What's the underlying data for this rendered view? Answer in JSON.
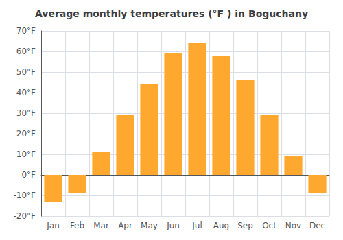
{
  "chart_data": {
    "type": "bar",
    "title": "Average monthly temperatures (°F ) in Boguchany",
    "categories": [
      "Jan",
      "Feb",
      "Mar",
      "Apr",
      "May",
      "Jun",
      "Jul",
      "Aug",
      "Sep",
      "Oct",
      "Nov",
      "Dec"
    ],
    "values": [
      -13,
      -9,
      11,
      29,
      44,
      59,
      64,
      58,
      46,
      29,
      9,
      -9
    ],
    "color": "#FFA830",
    "ylim": [
      -20,
      70
    ],
    "yticks": [
      {
        "value": -20,
        "label": "-20°F"
      },
      {
        "value": -10,
        "label": "-10°F"
      },
      {
        "value": 0,
        "label": "0°F"
      },
      {
        "value": 10,
        "label": "10°F"
      },
      {
        "value": 20,
        "label": "20°F"
      },
      {
        "value": 30,
        "label": "30°F"
      },
      {
        "value": 40,
        "label": "40°F"
      },
      {
        "value": 50,
        "label": "50°F"
      },
      {
        "value": 60,
        "label": "60°F"
      },
      {
        "value": 70,
        "label": "70°F"
      }
    ],
    "grid": true
  }
}
